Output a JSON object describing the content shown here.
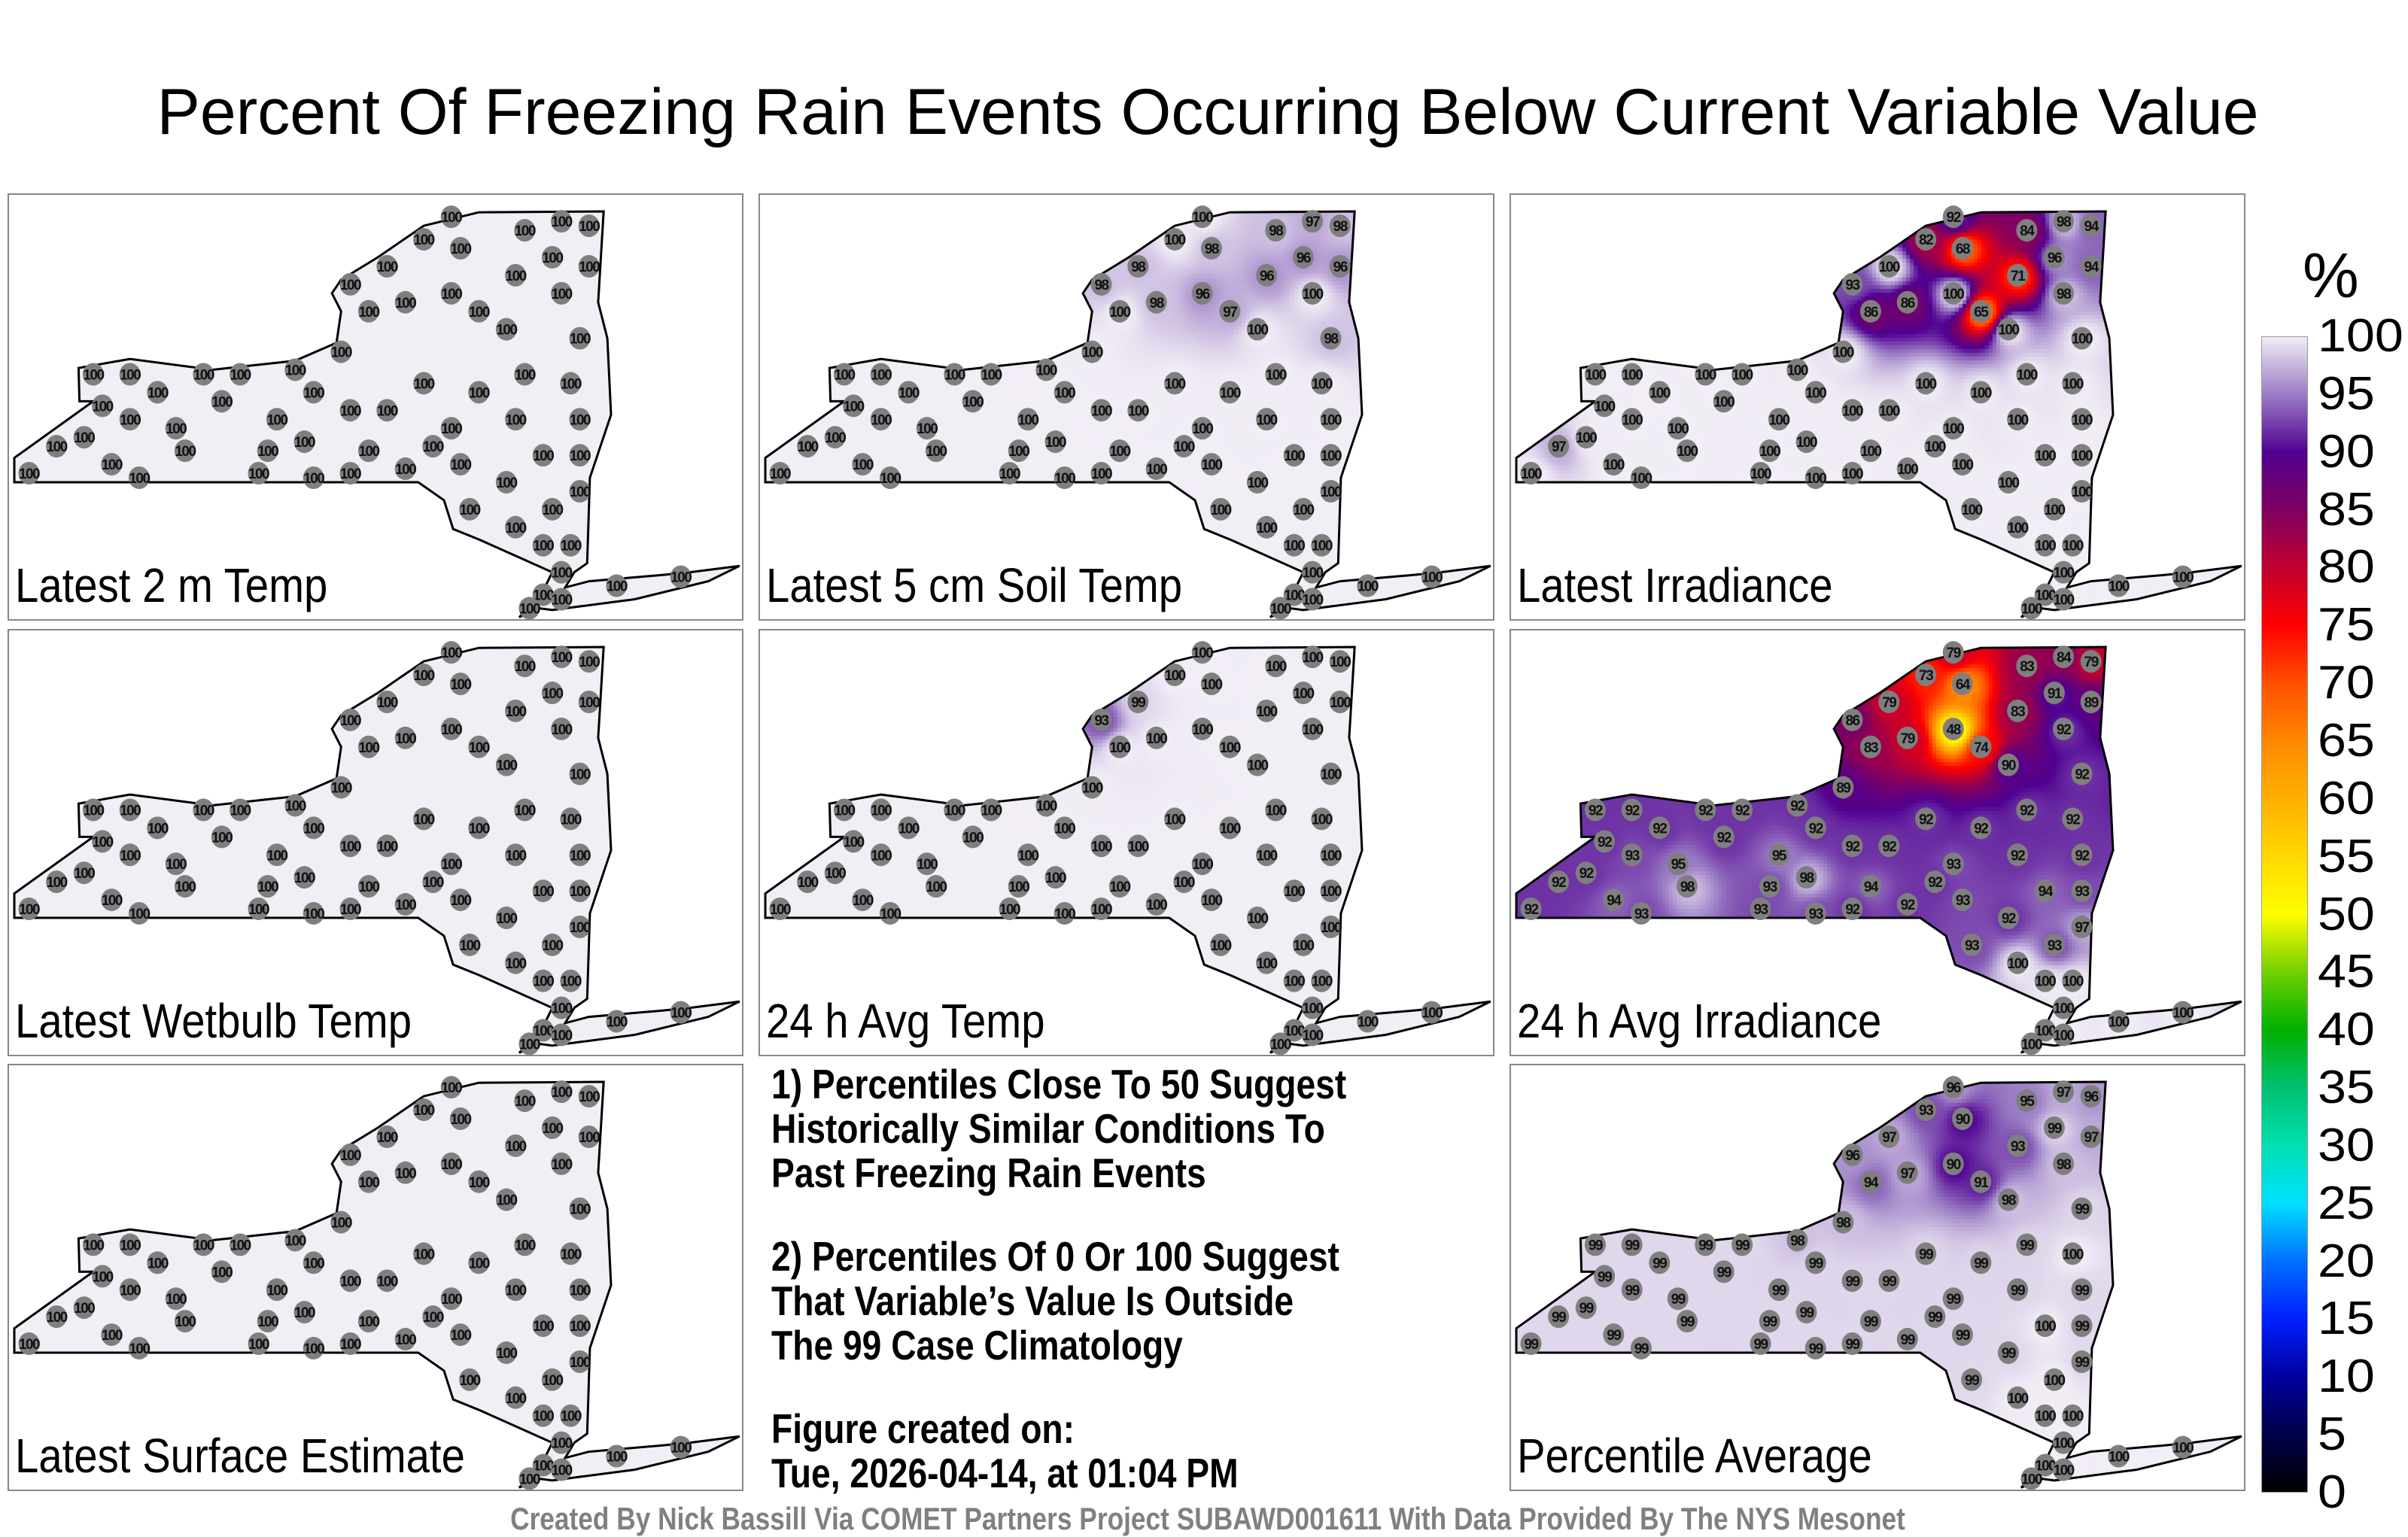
{
  "title": "Percent Of Freezing Rain Events Occurring Below Current Variable Value",
  "colorbar": {
    "unit": "%",
    "ticks": [
      "100",
      "95",
      "90",
      "85",
      "80",
      "75",
      "70",
      "65",
      "60",
      "55",
      "50",
      "45",
      "40",
      "35",
      "30",
      "25",
      "20",
      "15",
      "10",
      "5",
      "0"
    ],
    "colors": [
      "#000000",
      "#00004a",
      "#0000a0",
      "#0020ff",
      "#0070ff",
      "#00e0ff",
      "#00e0b0",
      "#00c070",
      "#00b000",
      "#70d000",
      "#ffff00",
      "#ffd800",
      "#ffb000",
      "#ff8800",
      "#ff5000",
      "#ff0000",
      "#c00030",
      "#800060",
      "#500090",
      "#9a7cc4",
      "#f2eef6"
    ]
  },
  "stations": [
    [
      -79.6,
      42.1
    ],
    [
      -79.3,
      42.4
    ],
    [
      -79.0,
      42.5
    ],
    [
      -78.7,
      42.2
    ],
    [
      -78.4,
      42.05
    ],
    [
      -78.8,
      42.85
    ],
    [
      -78.9,
      43.2
    ],
    [
      -78.5,
      43.2
    ],
    [
      -78.2,
      43.0
    ],
    [
      -78.5,
      42.7
    ],
    [
      -78.0,
      42.6
    ],
    [
      -77.7,
      43.2
    ],
    [
      -77.5,
      42.9
    ],
    [
      -77.9,
      42.35
    ],
    [
      -77.1,
      42.1
    ],
    [
      -77.3,
      43.2
    ],
    [
      -76.9,
      42.7
    ],
    [
      -76.6,
      42.45
    ],
    [
      -76.5,
      42.05
    ],
    [
      -76.1,
      42.1
    ],
    [
      -76.5,
      43.0
    ],
    [
      -76.7,
      43.25
    ],
    [
      -76.2,
      43.45
    ],
    [
      -76.1,
      42.8
    ],
    [
      -75.9,
      42.35
    ],
    [
      -75.5,
      42.15
    ],
    [
      -75.7,
      42.8
    ],
    [
      -75.3,
      43.1
    ],
    [
      -75.0,
      42.6
    ],
    [
      -75.9,
      43.9
    ],
    [
      -76.1,
      44.2
    ],
    [
      -75.7,
      44.4
    ],
    [
      -75.3,
      44.7
    ],
    [
      -75.0,
      44.95
    ],
    [
      -74.9,
      44.6
    ],
    [
      -75.5,
      44.0
    ],
    [
      -75.0,
      44.1
    ],
    [
      -74.7,
      43.9
    ],
    [
      -74.2,
      44.8
    ],
    [
      -74.3,
      44.3
    ],
    [
      -73.8,
      44.9
    ],
    [
      -73.5,
      44.85
    ],
    [
      -73.9,
      44.5
    ],
    [
      -73.5,
      44.4
    ],
    [
      -73.8,
      44.1
    ],
    [
      -74.4,
      43.7
    ],
    [
      -73.6,
      43.6
    ],
    [
      -74.2,
      43.2
    ],
    [
      -73.7,
      43.1
    ],
    [
      -74.7,
      43.0
    ],
    [
      -74.3,
      42.7
    ],
    [
      -73.6,
      42.7
    ],
    [
      -74.0,
      42.3
    ],
    [
      -73.6,
      42.3
    ],
    [
      -74.9,
      42.2
    ],
    [
      -74.4,
      42.0
    ],
    [
      -74.8,
      41.7
    ],
    [
      -74.3,
      41.5
    ],
    [
      -73.9,
      41.7
    ],
    [
      -73.6,
      41.9
    ],
    [
      -74.0,
      41.3
    ],
    [
      -73.7,
      41.3
    ],
    [
      -73.8,
      41.0
    ],
    [
      -74.0,
      40.75
    ],
    [
      -74.15,
      40.6
    ],
    [
      -73.8,
      40.7
    ],
    [
      -73.2,
      40.85
    ],
    [
      -72.5,
      40.95
    ],
    [
      -77.0,
      42.35
    ],
    [
      -75.2,
      42.4
    ]
  ],
  "panels": [
    {
      "label": "Latest 2 m Temp",
      "values": [
        100,
        100,
        100,
        100,
        100,
        100,
        100,
        100,
        100,
        100,
        100,
        100,
        100,
        100,
        100,
        100,
        100,
        100,
        100,
        100,
        100,
        100,
        100,
        100,
        100,
        100,
        100,
        100,
        100,
        100,
        100,
        100,
        100,
        100,
        100,
        100,
        100,
        100,
        100,
        100,
        100,
        100,
        100,
        100,
        100,
        100,
        100,
        100,
        100,
        100,
        100,
        100,
        100,
        100,
        100,
        100,
        100,
        100,
        100,
        100,
        100,
        100,
        100,
        100,
        100,
        100,
        100,
        100,
        100,
        100
      ]
    },
    {
      "label": "Latest 5 cm Soil Temp",
      "values": [
        100,
        100,
        100,
        100,
        100,
        100,
        100,
        100,
        100,
        100,
        100,
        100,
        100,
        100,
        100,
        100,
        100,
        100,
        100,
        100,
        100,
        100,
        100,
        100,
        100,
        100,
        100,
        100,
        100,
        100,
        98,
        98,
        100,
        100,
        98,
        98,
        96,
        97,
        98,
        96,
        97,
        98,
        96,
        96,
        100,
        100,
        98,
        100,
        100,
        100,
        100,
        100,
        100,
        100,
        100,
        100,
        100,
        100,
        100,
        100,
        100,
        100,
        100,
        100,
        100,
        100,
        100,
        100,
        100,
        100
      ]
    },
    {
      "label": "Latest Irradiance",
      "values": [
        100,
        97,
        100,
        100,
        100,
        100,
        100,
        100,
        100,
        100,
        100,
        100,
        100,
        100,
        100,
        100,
        100,
        100,
        100,
        100,
        100,
        100,
        100,
        100,
        100,
        100,
        100,
        100,
        100,
        86,
        93,
        100,
        82,
        92,
        68,
        86,
        100,
        65,
        84,
        71,
        98,
        94,
        96,
        94,
        98,
        100,
        100,
        100,
        100,
        100,
        100,
        100,
        100,
        100,
        100,
        100,
        100,
        100,
        100,
        100,
        100,
        100,
        100,
        100,
        100,
        100,
        100,
        100,
        100,
        100
      ]
    },
    {
      "label": "Latest Wetbulb Temp",
      "values": [
        100,
        100,
        100,
        100,
        100,
        100,
        100,
        100,
        100,
        100,
        100,
        100,
        100,
        100,
        100,
        100,
        100,
        100,
        100,
        100,
        100,
        100,
        100,
        100,
        100,
        100,
        100,
        100,
        100,
        100,
        100,
        100,
        100,
        100,
        100,
        100,
        100,
        100,
        100,
        100,
        100,
        100,
        100,
        100,
        100,
        100,
        100,
        100,
        100,
        100,
        100,
        100,
        100,
        100,
        100,
        100,
        100,
        100,
        100,
        100,
        100,
        100,
        100,
        100,
        100,
        100,
        100,
        100,
        100,
        100
      ]
    },
    {
      "label": "24 h Avg Temp",
      "values": [
        100,
        100,
        100,
        100,
        100,
        100,
        100,
        100,
        100,
        100,
        100,
        100,
        100,
        100,
        100,
        100,
        100,
        100,
        100,
        100,
        100,
        100,
        100,
        100,
        100,
        100,
        100,
        100,
        100,
        100,
        93,
        99,
        100,
        100,
        100,
        100,
        100,
        100,
        100,
        100,
        100,
        100,
        100,
        100,
        100,
        100,
        100,
        100,
        100,
        100,
        100,
        100,
        100,
        100,
        100,
        100,
        100,
        100,
        100,
        100,
        100,
        100,
        100,
        100,
        100,
        100,
        100,
        100,
        100,
        100
      ]
    },
    {
      "label": "24 h Avg Irradiance",
      "values": [
        92,
        92,
        92,
        94,
        93,
        92,
        92,
        92,
        92,
        93,
        95,
        92,
        92,
        98,
        93,
        92,
        95,
        98,
        93,
        92,
        92,
        92,
        89,
        92,
        94,
        92,
        92,
        92,
        93,
        83,
        86,
        79,
        73,
        79,
        64,
        79,
        48,
        74,
        83,
        83,
        84,
        79,
        91,
        89,
        92,
        90,
        92,
        92,
        92,
        92,
        92,
        92,
        94,
        93,
        93,
        92,
        93,
        100,
        93,
        97,
        100,
        100,
        100,
        100,
        100,
        100,
        100,
        100,
        93,
        92
      ]
    },
    {
      "label": "Latest Surface Estimate",
      "values": [
        100,
        100,
        100,
        100,
        100,
        100,
        100,
        100,
        100,
        100,
        100,
        100,
        100,
        100,
        100,
        100,
        100,
        100,
        100,
        100,
        100,
        100,
        100,
        100,
        100,
        100,
        100,
        100,
        100,
        100,
        100,
        100,
        100,
        100,
        100,
        100,
        100,
        100,
        100,
        100,
        100,
        100,
        100,
        100,
        100,
        100,
        100,
        100,
        100,
        100,
        100,
        100,
        100,
        100,
        100,
        100,
        100,
        100,
        100,
        100,
        100,
        100,
        100,
        100,
        100,
        100,
        100,
        100,
        100,
        100
      ]
    },
    {
      "label": "Percentile Average",
      "values": [
        99,
        99,
        99,
        99,
        99,
        99,
        99,
        99,
        99,
        99,
        99,
        99,
        99,
        99,
        99,
        99,
        99,
        99,
        99,
        99,
        99,
        98,
        98,
        99,
        99,
        99,
        99,
        99,
        99,
        94,
        96,
        97,
        93,
        96,
        90,
        97,
        90,
        91,
        95,
        93,
        97,
        96,
        99,
        97,
        98,
        98,
        99,
        99,
        100,
        99,
        99,
        99,
        100,
        99,
        99,
        99,
        99,
        100,
        100,
        99,
        100,
        100,
        100,
        100,
        100,
        100,
        100,
        100,
        99,
        99
      ]
    }
  ],
  "notes": {
    "note1": [
      "1) Percentiles Close To 50 Suggest",
      "Historically Similar Conditions To",
      "Past Freezing Rain Events"
    ],
    "note2": [
      "2) Percentiles Of 0 Or 100 Suggest",
      "That Variable’s Value Is Outside",
      "The 99 Case Climatology"
    ],
    "created": [
      "Figure created on:",
      "Tue, 2026-04-14, at 01:04 PM"
    ]
  },
  "footer": "Created By Nick Bassill Via COMET Partners Project SUBAWD001611 With Data Provided By The NYS Mesonet"
}
